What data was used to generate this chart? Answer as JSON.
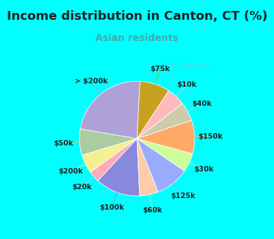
{
  "title": "Income distribution in Canton, CT (%)",
  "subtitle": "Asian residents",
  "title_fontsize": 13,
  "subtitle_fontsize": 10,
  "title_color": "#222222",
  "subtitle_color": "#44aaaa",
  "background_color": "#00FFFF",
  "watermark": "City-Data.com",
  "labels": [
    "> $200k",
    "$50k",
    "$200k",
    "$20k",
    "$100k",
    "$60k",
    "$125k",
    "$30k",
    "$150k",
    "$40k",
    "$10k",
    "$75k"
  ],
  "values": [
    22,
    7,
    5,
    3,
    12,
    5,
    9,
    5,
    9,
    5,
    5,
    8
  ],
  "colors": [
    "#b0a0d8",
    "#aacca0",
    "#f5f090",
    "#ffaabb",
    "#8888dd",
    "#ffccaa",
    "#99aaff",
    "#ccff99",
    "#ffaa66",
    "#ccccaa",
    "#ffbbbb",
    "#c8a020"
  ],
  "label_fontsize": 7.5,
  "startangle": 87,
  "label_distance": 1.28
}
